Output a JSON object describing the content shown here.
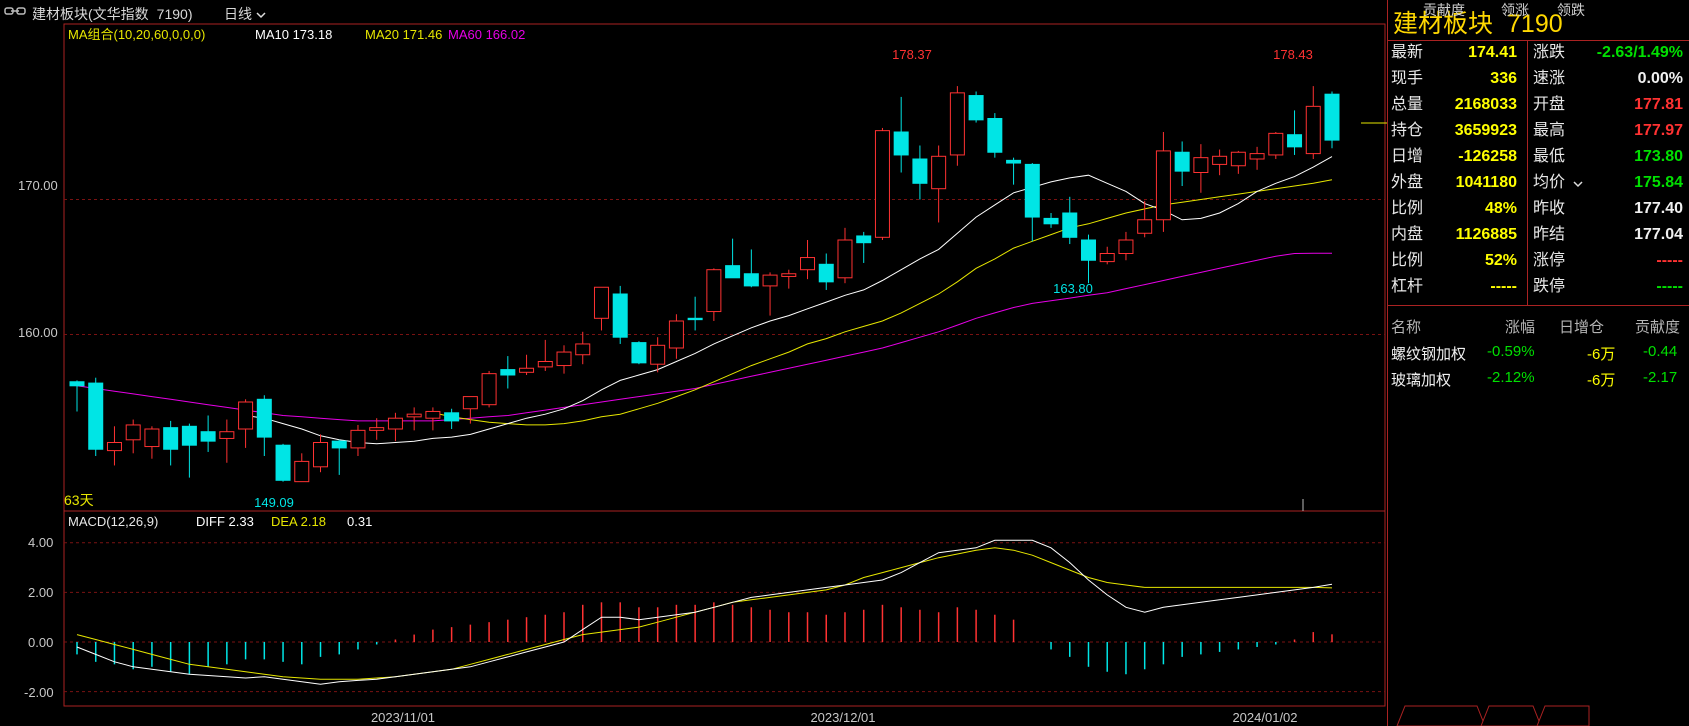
{
  "window": {
    "title": "建材板块(文华指数",
    "code": "7190)",
    "period": "日线",
    "period_arrow": "chevron-down-icon"
  },
  "main_chart": {
    "ma_indicator": "MA组合(10,20,60,0,0,0)",
    "ma10": "MA10 173.18",
    "ma20": "MA20 171.46",
    "ma60": "MA60 166.02",
    "days_label": "63天",
    "y_ticks": [
      "170.00",
      "160.00"
    ],
    "annotations": {
      "high1": "178.37",
      "high2": "178.43",
      "low1": "149.09",
      "low2": "163.80"
    },
    "colors": {
      "up": "#ff3232",
      "down": "#00e5e5",
      "ma10": "#ffffff",
      "ma20": "#e6e600",
      "ma60": "#e600e6",
      "grid": "#7a1212"
    }
  },
  "macd_chart": {
    "indicator": "MACD(12,26,9)",
    "diff": "DIFF 2.33",
    "dea": "DEA 2.18",
    "macd": "0.31",
    "y_ticks": [
      "4.00",
      "2.00",
      "0.00",
      "-2.00"
    ]
  },
  "x_axis_dates": [
    "2023/11/01",
    "2023/12/01",
    "2024/01/02"
  ],
  "chart_data": {
    "type": "candlestick",
    "ylim": [
      147,
      183
    ],
    "candles": [
      [
        156.5,
        156.6,
        154.3,
        156.2
      ],
      [
        156.4,
        156.8,
        151.0,
        151.5
      ],
      [
        151.4,
        153.2,
        150.3,
        152.0
      ],
      [
        152.2,
        153.7,
        151.2,
        153.3
      ],
      [
        151.7,
        153.2,
        150.8,
        153.0
      ],
      [
        153.1,
        153.6,
        150.3,
        151.5
      ],
      [
        153.2,
        153.4,
        149.4,
        151.8
      ],
      [
        152.8,
        154.0,
        151.3,
        152.1
      ],
      [
        152.3,
        153.7,
        150.5,
        152.8
      ],
      [
        153.0,
        155.2,
        151.6,
        155.0
      ],
      [
        155.2,
        155.5,
        151.0,
        152.4
      ],
      [
        151.8,
        151.9,
        149.1,
        149.2
      ],
      [
        149.1,
        151.2,
        149.1,
        150.6
      ],
      [
        150.2,
        152.6,
        149.8,
        152.0
      ],
      [
        152.1,
        152.2,
        149.6,
        151.6
      ],
      [
        151.6,
        153.3,
        151.0,
        152.9
      ],
      [
        152.9,
        153.8,
        152.2,
        153.1
      ],
      [
        153.0,
        154.2,
        152.1,
        153.8
      ],
      [
        153.9,
        154.6,
        152.9,
        154.1
      ],
      [
        153.8,
        154.6,
        152.9,
        154.3
      ],
      [
        154.2,
        154.5,
        153.0,
        153.6
      ],
      [
        154.5,
        155.3,
        153.4,
        155.4
      ],
      [
        154.8,
        157.3,
        154.6,
        157.1
      ],
      [
        157.4,
        158.4,
        156.0,
        157.0
      ],
      [
        157.2,
        158.5,
        157.0,
        157.5
      ],
      [
        157.6,
        159.6,
        157.3,
        158.0
      ],
      [
        157.7,
        159.2,
        157.1,
        158.7
      ],
      [
        158.5,
        160.2,
        157.8,
        159.3
      ],
      [
        161.2,
        163.2,
        160.3,
        163.5
      ],
      [
        163.0,
        163.6,
        159.3,
        159.8
      ],
      [
        159.4,
        159.5,
        157.8,
        157.9
      ],
      [
        157.8,
        159.8,
        157.2,
        159.2
      ],
      [
        159.0,
        161.5,
        158.2,
        161.0
      ],
      [
        161.2,
        162.8,
        160.3,
        161.1
      ],
      [
        161.7,
        164.9,
        161.0,
        164.8
      ],
      [
        165.1,
        167.1,
        164.5,
        164.2
      ],
      [
        164.5,
        166.3,
        163.5,
        163.6
      ],
      [
        163.6,
        164.6,
        161.4,
        164.4
      ],
      [
        164.3,
        164.8,
        163.4,
        164.5
      ],
      [
        164.8,
        167.0,
        164.1,
        165.7
      ],
      [
        165.2,
        166.0,
        163.3,
        163.9
      ],
      [
        164.2,
        167.9,
        163.8,
        167.0
      ],
      [
        167.3,
        167.6,
        165.3,
        166.8
      ],
      [
        167.2,
        175.3,
        167.0,
        175.1
      ],
      [
        175.0,
        177.6,
        172.0,
        173.3
      ],
      [
        173.0,
        174.0,
        170.0,
        171.2
      ],
      [
        170.8,
        174.0,
        168.3,
        173.2
      ],
      [
        173.3,
        178.4,
        172.5,
        177.9
      ],
      [
        177.7,
        178.0,
        175.7,
        175.9
      ],
      [
        176.0,
        176.4,
        173.1,
        173.5
      ],
      [
        172.9,
        173.1,
        171.1,
        172.7
      ],
      [
        172.6,
        172.7,
        166.9,
        168.7
      ],
      [
        168.6,
        169.0,
        167.9,
        168.2
      ],
      [
        169.0,
        170.2,
        166.7,
        167.2
      ],
      [
        167.0,
        167.4,
        163.8,
        165.5
      ],
      [
        165.4,
        166.5,
        165.2,
        166.0
      ],
      [
        166.0,
        167.6,
        165.5,
        167.0
      ],
      [
        167.5,
        169.9,
        167.2,
        168.5
      ],
      [
        168.5,
        175.0,
        167.6,
        173.6
      ],
      [
        173.5,
        174.3,
        171.0,
        172.1
      ],
      [
        172.0,
        174.1,
        170.5,
        173.1
      ],
      [
        172.6,
        173.7,
        171.8,
        173.2
      ],
      [
        172.5,
        173.6,
        171.9,
        173.5
      ],
      [
        173.0,
        173.9,
        172.2,
        173.4
      ],
      [
        173.3,
        175.0,
        173.0,
        174.9
      ],
      [
        174.8,
        176.6,
        173.3,
        173.9
      ],
      [
        173.4,
        178.4,
        173.0,
        176.9
      ],
      [
        177.8,
        178.0,
        173.8,
        174.4
      ]
    ],
    "macd_values": [
      -0.5,
      -0.8,
      -0.9,
      -1.1,
      -1.0,
      -1.2,
      -1.3,
      -1.0,
      -0.9,
      -0.7,
      -0.7,
      -0.8,
      -0.9,
      -0.6,
      -0.5,
      -0.3,
      -0.1,
      0.1,
      0.3,
      0.5,
      0.6,
      0.7,
      0.8,
      0.9,
      1.0,
      1.1,
      1.2,
      1.5,
      1.6,
      1.6,
      1.4,
      1.4,
      1.5,
      1.5,
      1.6,
      1.5,
      1.4,
      1.3,
      1.2,
      1.2,
      1.1,
      1.2,
      1.3,
      1.5,
      1.4,
      1.3,
      1.2,
      1.4,
      1.3,
      1.1,
      0.9,
      0.0,
      -0.3,
      -0.6,
      -1.0,
      -1.2,
      -1.3,
      -1.1,
      -0.9,
      -0.6,
      -0.5,
      -0.4,
      -0.3,
      -0.2,
      -0.1,
      0.1,
      0.4,
      0.31
    ],
    "diff": [
      -0.2,
      -0.5,
      -0.8,
      -1.0,
      -1.1,
      -1.2,
      -1.3,
      -1.35,
      -1.4,
      -1.45,
      -1.4,
      -1.5,
      -1.6,
      -1.7,
      -1.6,
      -1.55,
      -1.5,
      -1.4,
      -1.3,
      -1.2,
      -1.1,
      -1.0,
      -0.8,
      -0.6,
      -0.4,
      -0.2,
      0.0,
      0.5,
      1.0,
      1.0,
      0.9,
      1.0,
      1.1,
      1.2,
      1.4,
      1.6,
      1.8,
      1.9,
      2.0,
      2.1,
      2.2,
      2.3,
      2.4,
      2.5,
      2.8,
      3.2,
      3.6,
      3.7,
      3.8,
      4.1,
      4.1,
      4.1,
      3.8,
      3.2,
      2.5,
      1.9,
      1.4,
      1.2,
      1.4,
      1.5,
      1.6,
      1.7,
      1.8,
      1.9,
      2.0,
      2.1,
      2.2,
      2.33
    ],
    "dea": [
      0.3,
      0.1,
      -0.1,
      -0.3,
      -0.5,
      -0.7,
      -0.9,
      -1.0,
      -1.1,
      -1.2,
      -1.3,
      -1.4,
      -1.45,
      -1.5,
      -1.5,
      -1.5,
      -1.45,
      -1.4,
      -1.3,
      -1.2,
      -1.1,
      -0.9,
      -0.7,
      -0.5,
      -0.3,
      -0.1,
      0.1,
      0.3,
      0.4,
      0.5,
      0.6,
      0.8,
      1.0,
      1.2,
      1.4,
      1.6,
      1.7,
      1.8,
      1.9,
      2.0,
      2.1,
      2.3,
      2.6,
      2.8,
      3.0,
      3.2,
      3.4,
      3.55,
      3.7,
      3.8,
      3.7,
      3.5,
      3.2,
      2.9,
      2.6,
      2.4,
      2.3,
      2.2,
      2.2,
      2.2,
      2.2,
      2.2,
      2.2,
      2.2,
      2.2,
      2.2,
      2.2,
      2.18
    ],
    "ma10_series": [
      null,
      null,
      null,
      null,
      null,
      null,
      null,
      null,
      null,
      154.0,
      153.8,
      153.4,
      153.0,
      152.5,
      152.2,
      152.0,
      151.9,
      152.0,
      152.1,
      152.3,
      152.4,
      152.6,
      153.0,
      153.4,
      153.8,
      154.1,
      154.5,
      155.1,
      155.9,
      156.6,
      157.0,
      157.4,
      158.0,
      158.6,
      159.3,
      159.9,
      160.5,
      161.0,
      161.4,
      161.9,
      162.4,
      162.9,
      163.3,
      164.0,
      164.8,
      165.6,
      166.3,
      167.5,
      168.7,
      169.6,
      170.5,
      170.9,
      171.3,
      171.6,
      171.8,
      171.2,
      170.6,
      169.7,
      169.2,
      168.5,
      168.6,
      169.0,
      169.7,
      170.6,
      171.2,
      171.7,
      172.4,
      173.18
    ],
    "ma20_series": [
      null,
      null,
      null,
      null,
      null,
      null,
      null,
      null,
      null,
      null,
      null,
      null,
      null,
      null,
      null,
      null,
      null,
      null,
      null,
      154.2,
      153.9,
      153.7,
      153.5,
      153.4,
      153.3,
      153.3,
      153.4,
      153.6,
      153.9,
      154.1,
      154.5,
      154.9,
      155.4,
      155.9,
      156.5,
      157.1,
      157.7,
      158.2,
      158.7,
      159.3,
      159.7,
      160.2,
      160.6,
      161.0,
      161.6,
      162.3,
      163.0,
      163.9,
      164.9,
      165.6,
      166.4,
      166.9,
      167.4,
      167.9,
      168.2,
      168.6,
      169.0,
      169.3,
      169.6,
      169.8,
      170.0,
      170.2,
      170.4,
      170.6,
      170.8,
      171.0,
      171.2,
      171.46
    ],
    "ma60_series": [
      156.2,
      156.0,
      155.8,
      155.6,
      155.4,
      155.2,
      155.0,
      154.8,
      154.6,
      154.4,
      154.2,
      154.0,
      153.9,
      153.8,
      153.7,
      153.6,
      153.6,
      153.6,
      153.6,
      153.6,
      153.7,
      153.8,
      153.9,
      154.0,
      154.2,
      154.4,
      154.6,
      154.8,
      155.0,
      155.2,
      155.4,
      155.6,
      155.8,
      156.0,
      156.3,
      156.6,
      156.9,
      157.2,
      157.5,
      157.8,
      158.1,
      158.4,
      158.7,
      159.0,
      159.4,
      159.8,
      160.2,
      160.7,
      161.2,
      161.6,
      162.0,
      162.3,
      162.5,
      162.7,
      162.9,
      163.1,
      163.4,
      163.7,
      164.0,
      164.3,
      164.6,
      164.9,
      165.2,
      165.5,
      165.8,
      166.0,
      166.02,
      166.02
    ]
  },
  "quote": {
    "title": "建材板块",
    "code": "7190",
    "left": [
      {
        "label": "最新",
        "value": "174.41",
        "color": "yellow"
      },
      {
        "label": "现手",
        "value": "336",
        "color": "yellow"
      },
      {
        "label": "总量",
        "value": "2168033",
        "color": "yellow"
      },
      {
        "label": "持仓",
        "value": "3659923",
        "color": "yellow"
      },
      {
        "label": "日增",
        "value": "-126258",
        "color": "yellow"
      },
      {
        "label": "外盘",
        "value": "1041180",
        "color": "yellow"
      },
      {
        "label": "比例",
        "value": "48%",
        "color": "yellow"
      },
      {
        "label": "内盘",
        "value": "1126885",
        "color": "yellow"
      },
      {
        "label": "比例",
        "value": "52%",
        "color": "yellow"
      },
      {
        "label": "杠杆",
        "value": "-----",
        "color": "yellow"
      }
    ],
    "right": [
      {
        "label": "涨跌",
        "value": "-2.63/1.49%",
        "color": "green"
      },
      {
        "label": "速涨",
        "value": "0.00%",
        "color": "white"
      },
      {
        "label": "开盘",
        "value": "177.81",
        "color": "red"
      },
      {
        "label": "最高",
        "value": "177.97",
        "color": "red"
      },
      {
        "label": "最低",
        "value": "173.80",
        "color": "green"
      },
      {
        "label": "均价",
        "value": "175.84",
        "color": "green"
      },
      {
        "label": "昨收",
        "value": "177.40",
        "color": "white"
      },
      {
        "label": "昨结",
        "value": "177.04",
        "color": "white"
      },
      {
        "label": "涨停",
        "value": "-----",
        "color": "red"
      },
      {
        "label": "跌停",
        "value": "-----",
        "color": "green"
      }
    ]
  },
  "contribution": {
    "headers": {
      "name": "名称",
      "change": "涨幅",
      "oi_change": "日增仓",
      "contrib": "贡献度"
    },
    "rows": [
      {
        "name": "螺纹钢加权",
        "change": "-0.59%",
        "oi_change": "-6万",
        "contrib": "-0.44"
      },
      {
        "name": "玻璃加权",
        "change": "-2.12%",
        "oi_change": "-6万",
        "contrib": "-2.17"
      }
    ]
  },
  "tabs": [
    "贡献度",
    "领涨",
    "领跌"
  ]
}
